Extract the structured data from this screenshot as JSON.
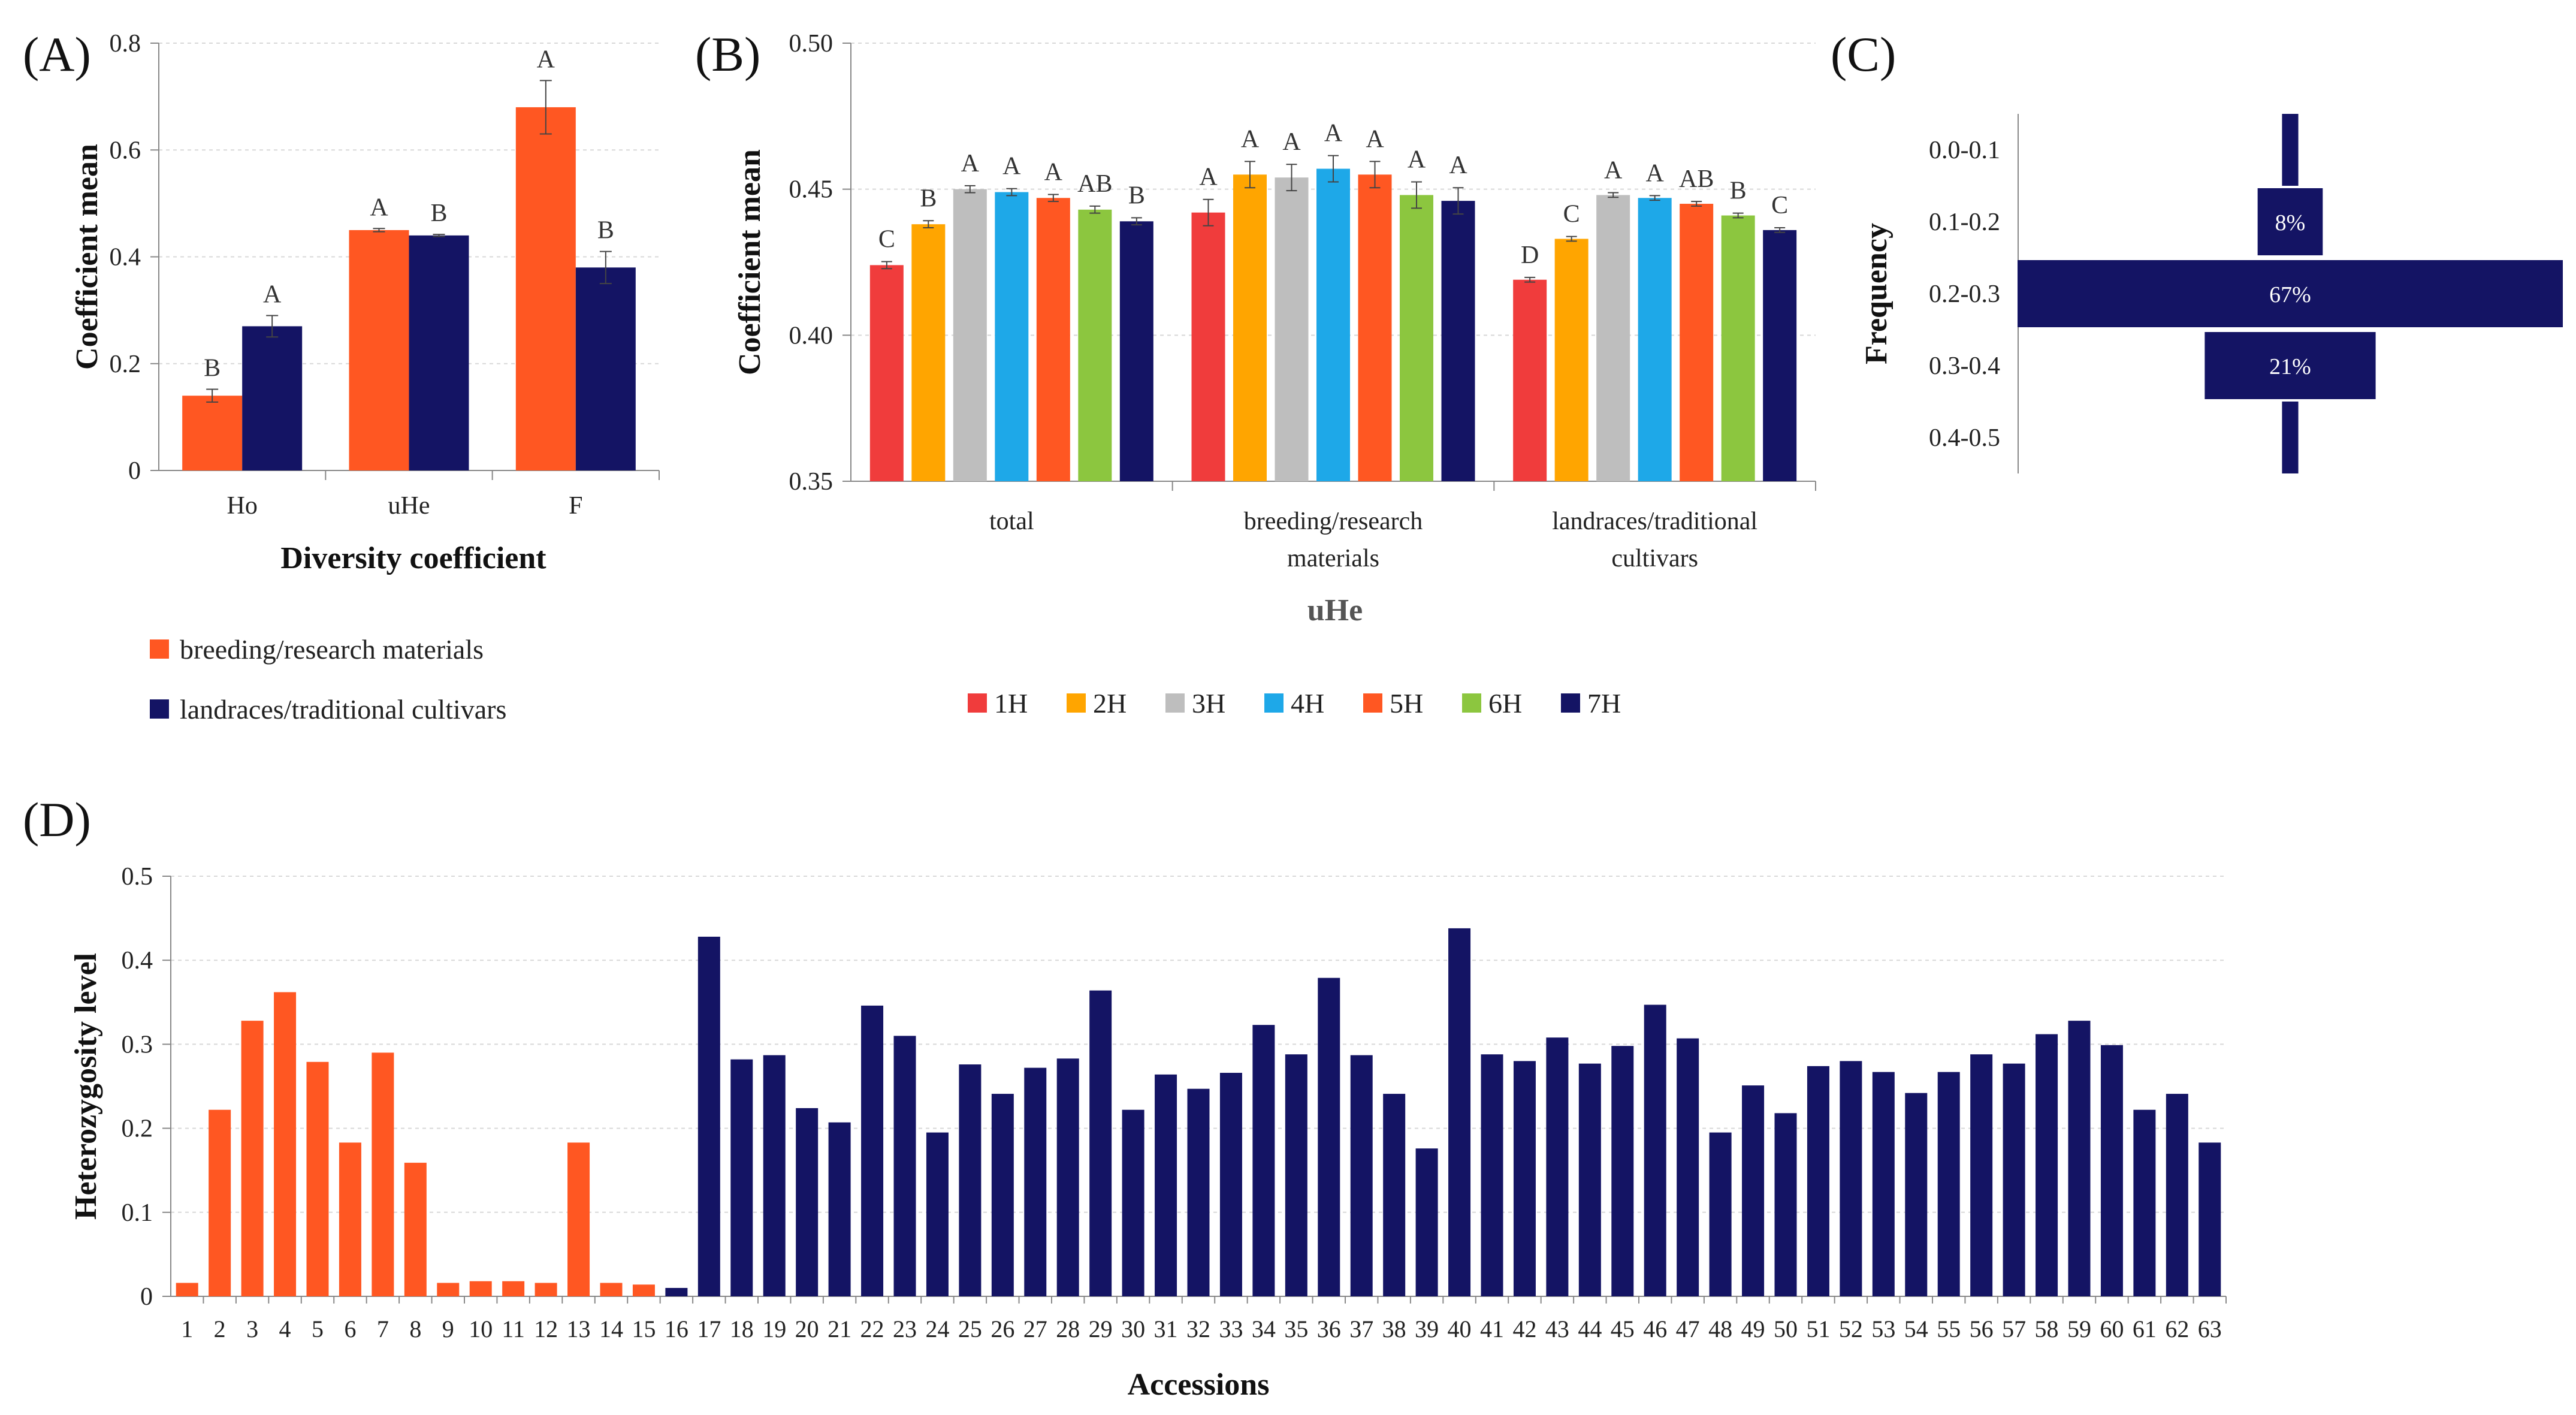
{
  "chart_data": [
    {
      "id": "A",
      "type": "bar",
      "panel_label": "(A)",
      "xlabel": "Diversity coefficient",
      "ylabel": "Coefficient mean",
      "ylim": [
        0,
        0.8
      ],
      "yticks": [
        "0",
        "0.2",
        "0.4",
        "0.6",
        "0.8"
      ],
      "categories": [
        "Ho",
        "uHe",
        "F"
      ],
      "series": [
        {
          "name": "breeding/research materials",
          "color": "#FF5722",
          "values": [
            0.14,
            0.45,
            0.68
          ],
          "errors": [
            0.012,
            0.003,
            0.05
          ],
          "letters": [
            "B",
            "A",
            "A"
          ]
        },
        {
          "name": "landraces/traditional cultivars",
          "color": "#141464",
          "values": [
            0.27,
            0.44,
            0.38
          ],
          "errors": [
            0.02,
            0.002,
            0.03
          ],
          "letters": [
            "A",
            "B",
            "B"
          ]
        }
      ],
      "legend_position": "bottom"
    },
    {
      "id": "B",
      "type": "bar",
      "panel_label": "(B)",
      "xlabel": "uHe",
      "ylabel": "Coefficient mean",
      "ylim": [
        0.35,
        0.5
      ],
      "yticks": [
        "0.35",
        "0.40",
        "0.45",
        "0.50"
      ],
      "categories": [
        "total",
        "breeding/research materials",
        "landraces/traditional cultivars"
      ],
      "category_lines": [
        [
          "total"
        ],
        [
          "breeding/research",
          "materials"
        ],
        [
          "landraces/traditional",
          "cultivars"
        ]
      ],
      "series": [
        {
          "name": "1H",
          "color": "#F03C3C",
          "values": [
            0.424,
            0.442,
            0.419
          ],
          "errors": [
            0.0012,
            0.0045,
            0.0008
          ],
          "letters": [
            "C",
            "A",
            "D"
          ]
        },
        {
          "name": "2H",
          "color": "#FFA500",
          "values": [
            0.438,
            0.455,
            0.433
          ],
          "errors": [
            0.0012,
            0.0045,
            0.0008
          ],
          "letters": [
            "B",
            "A",
            "C"
          ]
        },
        {
          "name": "3H",
          "color": "#BEBEBE",
          "values": [
            0.45,
            0.454,
            0.448
          ],
          "errors": [
            0.0012,
            0.0045,
            0.0008
          ],
          "letters": [
            "A",
            "A",
            "A"
          ]
        },
        {
          "name": "4H",
          "color": "#1EA8E8",
          "values": [
            0.449,
            0.457,
            0.447
          ],
          "errors": [
            0.0012,
            0.0045,
            0.0008
          ],
          "letters": [
            "A",
            "A",
            "A"
          ]
        },
        {
          "name": "5H",
          "color": "#FF5722",
          "values": [
            0.447,
            0.455,
            0.445
          ],
          "errors": [
            0.0012,
            0.0045,
            0.0008
          ],
          "letters": [
            "A",
            "A",
            "AB"
          ]
        },
        {
          "name": "6H",
          "color": "#8CC63F",
          "values": [
            0.443,
            0.448,
            0.441
          ],
          "errors": [
            0.0012,
            0.0045,
            0.0008
          ],
          "letters": [
            "AB",
            "A",
            "B"
          ]
        },
        {
          "name": "7H",
          "color": "#141464",
          "values": [
            0.439,
            0.446,
            0.436
          ],
          "errors": [
            0.0012,
            0.0045,
            0.0008
          ],
          "letters": [
            "B",
            "A",
            "C"
          ]
        }
      ],
      "legend_position": "bottom"
    },
    {
      "id": "C",
      "type": "bar",
      "orientation": "horizontal-centered",
      "panel_label": "(C)",
      "ylabel": "Frequency",
      "categories": [
        "0.0-0.1",
        "0.1-0.2",
        "0.2-0.3",
        "0.3-0.4",
        "0.4-0.5"
      ],
      "values": [
        2,
        8,
        67,
        21,
        2
      ],
      "value_labels": [
        "",
        "8%",
        "67%",
        "21%",
        ""
      ],
      "color": "#141464"
    },
    {
      "id": "D",
      "type": "bar",
      "panel_label": "(D)",
      "xlabel": "Accessions",
      "ylabel": "Heterozygosity level",
      "ylim": [
        0,
        0.5
      ],
      "yticks": [
        "0",
        "0.1",
        "0.2",
        "0.3",
        "0.4",
        "0.5"
      ],
      "categories": [
        "1",
        "2",
        "3",
        "4",
        "5",
        "6",
        "7",
        "8",
        "9",
        "10",
        "11",
        "12",
        "13",
        "14",
        "15",
        "16",
        "17",
        "18",
        "19",
        "20",
        "21",
        "22",
        "23",
        "24",
        "25",
        "26",
        "27",
        "28",
        "29",
        "30",
        "31",
        "32",
        "33",
        "34",
        "35",
        "36",
        "37",
        "38",
        "39",
        "40",
        "41",
        "42",
        "43",
        "44",
        "45",
        "46",
        "47",
        "48",
        "49",
        "50",
        "51",
        "52",
        "53",
        "54",
        "55",
        "56",
        "57",
        "58",
        "59",
        "60",
        "61",
        "62",
        "63"
      ],
      "values": [
        0.016,
        0.222,
        0.328,
        0.362,
        0.279,
        0.183,
        0.29,
        0.159,
        0.016,
        0.018,
        0.018,
        0.016,
        0.183,
        0.016,
        0.014,
        0.01,
        0.428,
        0.282,
        0.287,
        0.224,
        0.207,
        0.346,
        0.31,
        0.195,
        0.276,
        0.241,
        0.272,
        0.283,
        0.364,
        0.222,
        0.264,
        0.247,
        0.266,
        0.323,
        0.288,
        0.379,
        0.287,
        0.241,
        0.176,
        0.438,
        0.288,
        0.28,
        0.308,
        0.277,
        0.298,
        0.347,
        0.307,
        0.195,
        0.251,
        0.218,
        0.274,
        0.28,
        0.267,
        0.242,
        0.267,
        0.288,
        0.277,
        0.312,
        0.328,
        0.299,
        0.222,
        0.241,
        0.183
      ],
      "colors_by_group": {
        "breeding/research materials": "#FF5722",
        "landraces/traditional cultivars": "#141464"
      },
      "group_of_index": "first 15 breeding/research materials, rest landraces/traditional cultivars"
    }
  ]
}
